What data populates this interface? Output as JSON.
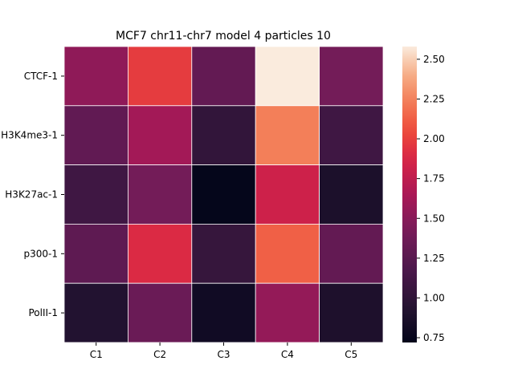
{
  "chart_data": {
    "type": "heatmap",
    "title": "MCF7 chr11-chr7 model 4 particles 10",
    "xlabel": "",
    "ylabel": "",
    "columns": [
      "C1",
      "C2",
      "C3",
      "C4",
      "C5"
    ],
    "rows": [
      "CTCF-1",
      "H3K4me3-1",
      "H3K27ac-1",
      "p300-1",
      "PolII-1"
    ],
    "values": [
      [
        1.53,
        1.98,
        1.31,
        2.58,
        1.4
      ],
      [
        1.3,
        1.62,
        1.02,
        2.24,
        1.1
      ],
      [
        1.1,
        1.4,
        0.73,
        1.82,
        0.88
      ],
      [
        1.28,
        1.9,
        1.04,
        2.13,
        1.31
      ],
      [
        0.92,
        1.35,
        0.81,
        1.55,
        0.89
      ]
    ],
    "colorbar": {
      "min": 0.72,
      "max": 2.58,
      "ticks": [
        "0.75",
        "1.00",
        "1.25",
        "1.50",
        "1.75",
        "2.00",
        "2.25",
        "2.50"
      ],
      "colormap": "rocket"
    },
    "grid": false,
    "cell_border_color": "#ffffff"
  }
}
